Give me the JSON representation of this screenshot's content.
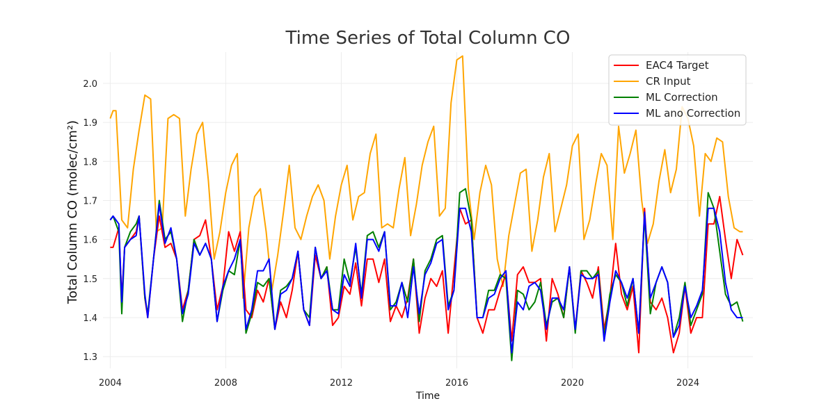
{
  "chart_data": {
    "type": "line",
    "title": "Time Series of Total Column CO",
    "xlabel": "Time",
    "ylabel": "Total Column CO (molec/cm²)",
    "xlim": [
      2003.75,
      2026.25
    ],
    "ylim": [
      1.27,
      2.08
    ],
    "xticks": [
      2004,
      2008,
      2012,
      2016,
      2020,
      2024
    ],
    "xtick_labels": [
      "2004",
      "2008",
      "2012",
      "2016",
      "2020",
      "2024"
    ],
    "yticks": [
      1.3,
      1.4,
      1.5,
      1.6,
      1.7,
      1.8,
      1.9,
      2.0
    ],
    "ytick_labels": [
      "1.3",
      "1.4",
      "1.5",
      "1.6",
      "1.7",
      "1.8",
      "1.9",
      "2.0"
    ],
    "grid": true,
    "legend_position": "top-right",
    "series": [
      {
        "name": "EAC4 Target",
        "color": "#ff0000",
        "x": [
          2004.0,
          2004.1,
          2004.3,
          2004.4,
          2004.5,
          2004.7,
          2004.9,
          2005.0,
          2005.2,
          2005.3,
          2005.5,
          2005.7,
          2005.9,
          2006.1,
          2006.3,
          2006.5,
          2006.7,
          2006.9,
          2007.1,
          2007.3,
          2007.5,
          2007.7,
          2007.9,
          2008.1,
          2008.3,
          2008.5,
          2008.7,
          2008.9,
          2009.1,
          2009.3,
          2009.5,
          2009.7,
          2009.9,
          2010.1,
          2010.3,
          2010.5,
          2010.7,
          2010.9,
          2011.1,
          2011.3,
          2011.5,
          2011.7,
          2011.9,
          2012.1,
          2012.3,
          2012.5,
          2012.7,
          2012.9,
          2013.1,
          2013.3,
          2013.5,
          2013.7,
          2013.9,
          2014.1,
          2014.3,
          2014.5,
          2014.7,
          2014.9,
          2015.1,
          2015.3,
          2015.5,
          2015.7,
          2015.9,
          2016.1,
          2016.3,
          2016.5,
          2016.7,
          2016.9,
          2017.1,
          2017.3,
          2017.5,
          2017.7,
          2017.9,
          2018.1,
          2018.3,
          2018.5,
          2018.7,
          2018.9,
          2019.1,
          2019.3,
          2019.5,
          2019.7,
          2019.9,
          2020.1,
          2020.3,
          2020.5,
          2020.7,
          2020.9,
          2021.1,
          2021.3,
          2021.5,
          2021.7,
          2021.9,
          2022.1,
          2022.3,
          2022.5,
          2022.7,
          2022.9,
          2023.1,
          2023.3,
          2023.5,
          2023.7,
          2023.9,
          2024.1,
          2024.3,
          2024.5,
          2024.7,
          2024.9,
          2025.1,
          2025.3,
          2025.5,
          2025.7,
          2025.9
        ],
        "y": [
          1.58,
          1.58,
          1.63,
          1.45,
          1.58,
          1.6,
          1.62,
          1.66,
          1.45,
          1.4,
          1.55,
          1.66,
          1.58,
          1.59,
          1.55,
          1.42,
          1.47,
          1.6,
          1.61,
          1.65,
          1.55,
          1.42,
          1.48,
          1.62,
          1.57,
          1.62,
          1.42,
          1.4,
          1.47,
          1.44,
          1.5,
          1.37,
          1.44,
          1.4,
          1.47,
          1.57,
          1.42,
          1.38,
          1.56,
          1.5,
          1.53,
          1.38,
          1.4,
          1.48,
          1.46,
          1.54,
          1.43,
          1.55,
          1.55,
          1.49,
          1.55,
          1.39,
          1.43,
          1.4,
          1.45,
          1.55,
          1.36,
          1.45,
          1.5,
          1.48,
          1.52,
          1.36,
          1.52,
          1.68,
          1.64,
          1.65,
          1.4,
          1.36,
          1.42,
          1.42,
          1.47,
          1.51,
          1.34,
          1.51,
          1.53,
          1.49,
          1.49,
          1.5,
          1.34,
          1.5,
          1.46,
          1.4,
          1.53,
          1.37,
          1.52,
          1.49,
          1.45,
          1.53,
          1.37,
          1.45,
          1.59,
          1.46,
          1.42,
          1.48,
          1.31,
          1.68,
          1.44,
          1.42,
          1.45,
          1.4,
          1.31,
          1.36,
          1.48,
          1.36,
          1.4,
          1.4,
          1.64,
          1.64,
          1.71,
          1.6,
          1.5,
          1.6,
          1.56
        ]
      },
      {
        "name": "CR Input",
        "color": "#ffa500",
        "x": [
          2004.0,
          2004.1,
          2004.2,
          2004.4,
          2004.6,
          2004.8,
          2005.0,
          2005.2,
          2005.4,
          2005.6,
          2005.8,
          2006.0,
          2006.2,
          2006.4,
          2006.6,
          2006.8,
          2007.0,
          2007.2,
          2007.4,
          2007.6,
          2007.8,
          2008.0,
          2008.2,
          2008.4,
          2008.6,
          2008.8,
          2009.0,
          2009.2,
          2009.4,
          2009.6,
          2009.8,
          2010.0,
          2010.2,
          2010.4,
          2010.6,
          2010.8,
          2011.0,
          2011.2,
          2011.4,
          2011.6,
          2011.8,
          2012.0,
          2012.2,
          2012.4,
          2012.6,
          2012.8,
          2013.0,
          2013.2,
          2013.4,
          2013.6,
          2013.8,
          2014.0,
          2014.2,
          2014.4,
          2014.6,
          2014.8,
          2015.0,
          2015.2,
          2015.4,
          2015.6,
          2015.8,
          2016.0,
          2016.2,
          2016.4,
          2016.6,
          2016.8,
          2017.0,
          2017.2,
          2017.4,
          2017.6,
          2017.8,
          2018.0,
          2018.2,
          2018.4,
          2018.6,
          2018.8,
          2019.0,
          2019.2,
          2019.4,
          2019.6,
          2019.8,
          2020.0,
          2020.2,
          2020.4,
          2020.6,
          2020.8,
          2021.0,
          2021.2,
          2021.4,
          2021.6,
          2021.8,
          2022.0,
          2022.2,
          2022.4,
          2022.6,
          2022.8,
          2023.0,
          2023.2,
          2023.4,
          2023.6,
          2023.8,
          2024.0,
          2024.2,
          2024.4,
          2024.6,
          2024.8,
          2025.0,
          2025.2,
          2025.4,
          2025.6,
          2025.8,
          2025.9
        ],
        "y": [
          1.91,
          1.93,
          1.93,
          1.65,
          1.63,
          1.78,
          1.88,
          1.97,
          1.96,
          1.62,
          1.63,
          1.91,
          1.92,
          1.91,
          1.66,
          1.78,
          1.87,
          1.9,
          1.75,
          1.55,
          1.62,
          1.72,
          1.79,
          1.82,
          1.45,
          1.63,
          1.71,
          1.73,
          1.62,
          1.47,
          1.56,
          1.67,
          1.79,
          1.63,
          1.6,
          1.66,
          1.71,
          1.74,
          1.7,
          1.55,
          1.66,
          1.74,
          1.79,
          1.65,
          1.71,
          1.72,
          1.82,
          1.87,
          1.63,
          1.64,
          1.63,
          1.73,
          1.81,
          1.61,
          1.69,
          1.79,
          1.85,
          1.89,
          1.66,
          1.68,
          1.95,
          2.06,
          2.07,
          1.73,
          1.6,
          1.72,
          1.79,
          1.74,
          1.55,
          1.48,
          1.61,
          1.69,
          1.77,
          1.78,
          1.57,
          1.65,
          1.76,
          1.82,
          1.62,
          1.68,
          1.74,
          1.84,
          1.87,
          1.6,
          1.65,
          1.74,
          1.82,
          1.79,
          1.6,
          1.89,
          1.77,
          1.82,
          1.88,
          1.7,
          1.59,
          1.64,
          1.75,
          1.83,
          1.72,
          1.78,
          1.94,
          1.91,
          1.84,
          1.66,
          1.82,
          1.8,
          1.86,
          1.85,
          1.71,
          1.63,
          1.62,
          1.62
        ]
      },
      {
        "name": "ML Correction",
        "color": "#008000",
        "x": [
          2004.0,
          2004.1,
          2004.3,
          2004.4,
          2004.5,
          2004.7,
          2004.9,
          2005.0,
          2005.2,
          2005.3,
          2005.5,
          2005.7,
          2005.9,
          2006.1,
          2006.3,
          2006.5,
          2006.7,
          2006.9,
          2007.1,
          2007.3,
          2007.5,
          2007.7,
          2007.9,
          2008.1,
          2008.3,
          2008.5,
          2008.7,
          2008.9,
          2009.1,
          2009.3,
          2009.5,
          2009.7,
          2009.9,
          2010.1,
          2010.3,
          2010.5,
          2010.7,
          2010.9,
          2011.1,
          2011.3,
          2011.5,
          2011.7,
          2011.9,
          2012.1,
          2012.3,
          2012.5,
          2012.7,
          2012.9,
          2013.1,
          2013.3,
          2013.5,
          2013.7,
          2013.9,
          2014.1,
          2014.3,
          2014.5,
          2014.7,
          2014.9,
          2015.1,
          2015.3,
          2015.5,
          2015.7,
          2015.9,
          2016.1,
          2016.3,
          2016.5,
          2016.7,
          2016.9,
          2017.1,
          2017.3,
          2017.5,
          2017.7,
          2017.9,
          2018.1,
          2018.3,
          2018.5,
          2018.7,
          2018.9,
          2019.1,
          2019.3,
          2019.5,
          2019.7,
          2019.9,
          2020.1,
          2020.3,
          2020.5,
          2020.7,
          2020.9,
          2021.1,
          2021.3,
          2021.5,
          2021.7,
          2021.9,
          2022.1,
          2022.3,
          2022.5,
          2022.7,
          2022.9,
          2023.1,
          2023.3,
          2023.5,
          2023.7,
          2023.9,
          2024.1,
          2024.3,
          2024.5,
          2024.7,
          2024.9,
          2025.1,
          2025.3,
          2025.5,
          2025.7,
          2025.9
        ],
        "y": [
          1.65,
          1.66,
          1.62,
          1.41,
          1.58,
          1.62,
          1.64,
          1.66,
          1.45,
          1.41,
          1.55,
          1.7,
          1.6,
          1.62,
          1.55,
          1.39,
          1.47,
          1.6,
          1.56,
          1.59,
          1.55,
          1.39,
          1.47,
          1.52,
          1.51,
          1.6,
          1.36,
          1.41,
          1.49,
          1.48,
          1.5,
          1.37,
          1.47,
          1.48,
          1.5,
          1.57,
          1.42,
          1.4,
          1.58,
          1.5,
          1.53,
          1.42,
          1.42,
          1.55,
          1.49,
          1.58,
          1.46,
          1.61,
          1.62,
          1.58,
          1.62,
          1.42,
          1.44,
          1.49,
          1.44,
          1.55,
          1.39,
          1.52,
          1.55,
          1.6,
          1.61,
          1.43,
          1.47,
          1.72,
          1.73,
          1.65,
          1.4,
          1.4,
          1.47,
          1.47,
          1.51,
          1.5,
          1.29,
          1.47,
          1.46,
          1.42,
          1.44,
          1.49,
          1.38,
          1.44,
          1.45,
          1.4,
          1.53,
          1.36,
          1.52,
          1.52,
          1.5,
          1.52,
          1.35,
          1.46,
          1.51,
          1.49,
          1.43,
          1.5,
          1.36,
          1.66,
          1.41,
          1.49,
          1.53,
          1.49,
          1.35,
          1.4,
          1.49,
          1.38,
          1.42,
          1.46,
          1.72,
          1.68,
          1.57,
          1.46,
          1.43,
          1.44,
          1.39
        ]
      },
      {
        "name": "ML ano Correction",
        "color": "#0000ff",
        "x": [
          2004.0,
          2004.1,
          2004.3,
          2004.4,
          2004.5,
          2004.7,
          2004.9,
          2005.0,
          2005.2,
          2005.3,
          2005.5,
          2005.7,
          2005.9,
          2006.1,
          2006.3,
          2006.5,
          2006.7,
          2006.9,
          2007.1,
          2007.3,
          2007.5,
          2007.7,
          2007.9,
          2008.1,
          2008.3,
          2008.5,
          2008.7,
          2008.9,
          2009.1,
          2009.3,
          2009.5,
          2009.7,
          2009.9,
          2010.1,
          2010.3,
          2010.5,
          2010.7,
          2010.9,
          2011.1,
          2011.3,
          2011.5,
          2011.7,
          2011.9,
          2012.1,
          2012.3,
          2012.5,
          2012.7,
          2012.9,
          2013.1,
          2013.3,
          2013.5,
          2013.7,
          2013.9,
          2014.1,
          2014.3,
          2014.5,
          2014.7,
          2014.9,
          2015.1,
          2015.3,
          2015.5,
          2015.7,
          2015.9,
          2016.1,
          2016.3,
          2016.5,
          2016.7,
          2016.9,
          2017.1,
          2017.3,
          2017.5,
          2017.7,
          2017.9,
          2018.1,
          2018.3,
          2018.5,
          2018.7,
          2018.9,
          2019.1,
          2019.3,
          2019.5,
          2019.7,
          2019.9,
          2020.1,
          2020.3,
          2020.5,
          2020.7,
          2020.9,
          2021.1,
          2021.3,
          2021.5,
          2021.7,
          2021.9,
          2022.1,
          2022.3,
          2022.5,
          2022.7,
          2022.9,
          2023.1,
          2023.3,
          2023.5,
          2023.7,
          2023.9,
          2024.1,
          2024.3,
          2024.5,
          2024.7,
          2024.9,
          2025.1,
          2025.3,
          2025.5,
          2025.7,
          2025.9
        ],
        "y": [
          1.65,
          1.66,
          1.64,
          1.44,
          1.58,
          1.6,
          1.61,
          1.66,
          1.46,
          1.4,
          1.55,
          1.69,
          1.59,
          1.63,
          1.55,
          1.41,
          1.46,
          1.59,
          1.56,
          1.59,
          1.55,
          1.39,
          1.48,
          1.52,
          1.55,
          1.6,
          1.37,
          1.42,
          1.52,
          1.52,
          1.55,
          1.37,
          1.46,
          1.47,
          1.5,
          1.57,
          1.42,
          1.38,
          1.58,
          1.5,
          1.52,
          1.42,
          1.41,
          1.51,
          1.48,
          1.59,
          1.45,
          1.6,
          1.6,
          1.57,
          1.62,
          1.43,
          1.43,
          1.49,
          1.4,
          1.53,
          1.41,
          1.51,
          1.54,
          1.59,
          1.6,
          1.42,
          1.47,
          1.68,
          1.68,
          1.62,
          1.4,
          1.4,
          1.45,
          1.46,
          1.5,
          1.52,
          1.31,
          1.44,
          1.42,
          1.48,
          1.49,
          1.47,
          1.37,
          1.45,
          1.45,
          1.42,
          1.53,
          1.37,
          1.51,
          1.5,
          1.5,
          1.51,
          1.34,
          1.44,
          1.52,
          1.49,
          1.45,
          1.5,
          1.36,
          1.67,
          1.45,
          1.49,
          1.53,
          1.49,
          1.35,
          1.38,
          1.48,
          1.4,
          1.43,
          1.47,
          1.68,
          1.68,
          1.62,
          1.49,
          1.42,
          1.4,
          1.4
        ]
      }
    ]
  }
}
